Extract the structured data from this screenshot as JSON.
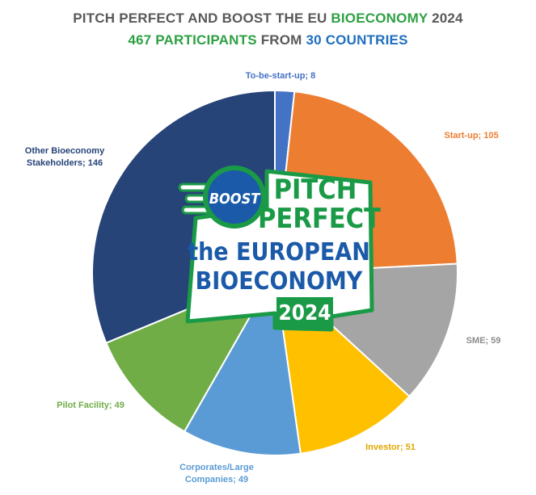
{
  "header": {
    "line1_part1": "PITCH PERFECT AND BOOST THE EU ",
    "line1_part2": "BIOECONOMY",
    "line1_part3": " 2024",
    "line2_part1": "467 PARTICIPANTS",
    "line2_part2": " FROM ",
    "line2_part3": "30 COUNTRIES"
  },
  "logo": {
    "badge": "BOOST",
    "line1": "PITCH",
    "line2": "PERFECT",
    "line3": "the EUROPEAN",
    "line4": "BIOECONOMY",
    "year": "2024"
  },
  "colors": {
    "to_be_start_up": "#4472c4",
    "start_up": "#ed7d31",
    "sme": "#a5a5a5",
    "investor": "#ffc000",
    "corporates": "#5b9bd5",
    "pilot": "#70ad47",
    "other": "#264478",
    "logo_green": "#1a9a46",
    "logo_blue": "#1a5aa8"
  },
  "chart_data": {
    "type": "pie",
    "categories": [
      "To-be-start-up",
      "Start-up",
      "SME",
      "Investor",
      "Corporates/Large Companies",
      "Pilot Facility",
      "Other Bioeconomy Stakeholders"
    ],
    "values": [
      8,
      105,
      59,
      51,
      49,
      49,
      146
    ],
    "labels": [
      [
        "To-be-start-up; 8"
      ],
      [
        "Start-up; 105"
      ],
      [
        "SME; 59"
      ],
      [
        "Investor; 51"
      ],
      [
        "Corporates/Large",
        "Companies; 49"
      ],
      [
        "Pilot Facility; 49"
      ],
      [
        "Other Bioeconomy",
        "Stakeholders; 146"
      ]
    ],
    "colors": [
      "#4472c4",
      "#ed7d31",
      "#a5a5a5",
      "#ffc000",
      "#5b9bd5",
      "#70ad47",
      "#264478"
    ],
    "label_colors": [
      "#4472c4",
      "#ed7d31",
      "#8c8c8c",
      "#e0a800",
      "#5b9bd5",
      "#70ad47",
      "#264478"
    ]
  }
}
